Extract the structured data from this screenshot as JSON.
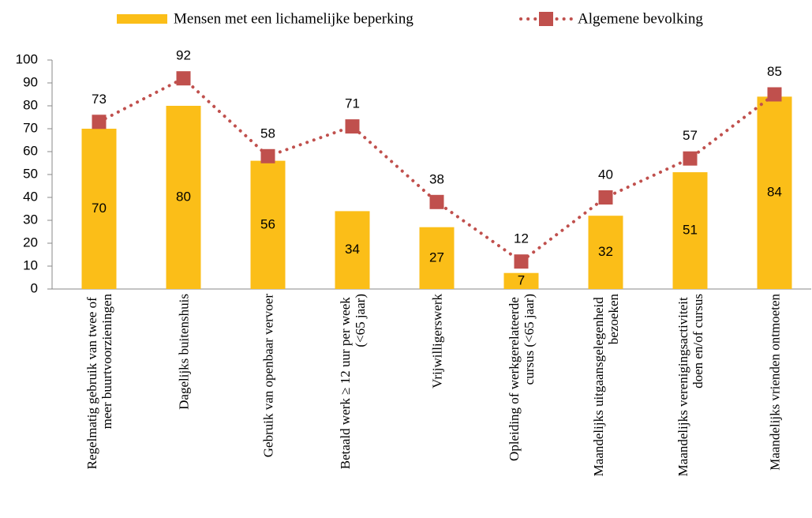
{
  "chart_data": {
    "type": "bar_line",
    "categories": [
      "Regelmatig gebruik van twee of meer buurtvoorzieningen",
      "Dagelijks buitenshuis",
      "Gebruik van openbaar vervoer",
      "Betaald werk ≥ 12 uur per week (<65 jaar)",
      "Vrijwilligerswerk",
      "Opleiding of werkgerelateerde cursus (<65 jaar)",
      "Maandelijks uitgaansgelegenheid bezoeken",
      "Maandelijks verenigingsactiviteit doen en/of cursus",
      "Maandelijks vrienden ontmoeten"
    ],
    "series": [
      {
        "name": "Mensen met een lichamelijke beperking",
        "type": "bar",
        "color": "#FBBE18",
        "values": [
          70,
          80,
          56,
          34,
          27,
          7,
          32,
          51,
          84
        ]
      },
      {
        "name": "Algemene bevolking",
        "type": "line",
        "color": "#C0504D",
        "values": [
          73,
          92,
          58,
          71,
          38,
          12,
          40,
          57,
          85
        ]
      }
    ],
    "ylim": [
      0,
      100
    ],
    "yticks": [
      0,
      10,
      20,
      30,
      40,
      50,
      60,
      70,
      80,
      90,
      100
    ]
  }
}
